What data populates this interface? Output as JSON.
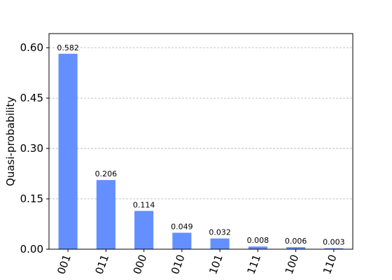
{
  "chart_data": {
    "type": "bar",
    "categories": [
      "001",
      "011",
      "000",
      "010",
      "101",
      "111",
      "100",
      "110"
    ],
    "values": [
      0.582,
      0.206,
      0.114,
      0.049,
      0.032,
      0.008,
      0.006,
      0.003
    ],
    "data_labels": [
      "0.582",
      "0.206",
      "0.114",
      "0.049",
      "0.032",
      "0.008",
      "0.006",
      "0.003"
    ],
    "title": "",
    "xlabel": "",
    "ylabel": "Quasi-probability",
    "ylim": [
      0,
      0.642
    ],
    "yticks": [
      0.0,
      0.15,
      0.3,
      0.45,
      0.6
    ],
    "ytick_labels": [
      "0.00",
      "0.15",
      "0.30",
      "0.45",
      "0.60"
    ],
    "grid": "horizontal-dashed",
    "bar_color": "#648fff",
    "grid_color": "#b0b0b0",
    "xtick_rotation_deg": -70
  }
}
